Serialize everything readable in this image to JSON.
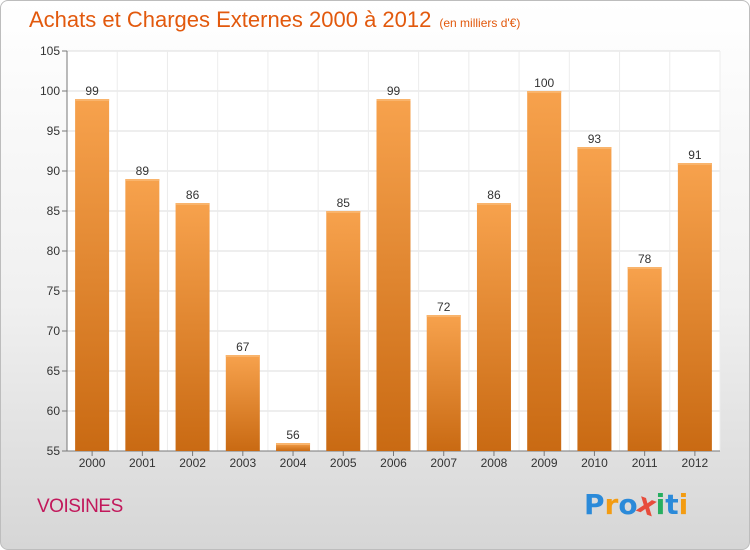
{
  "header": {
    "title": "Achats et Charges Externes 2000 à 2012",
    "unit": "(en milliers d'€)"
  },
  "footer": {
    "place": "VOISINES",
    "logo": {
      "text": "Proxiti",
      "colors": [
        "#2b8ad9",
        "#f39c12",
        "#2b8ad9",
        "#e74c3c",
        "#27ae60",
        "#2b8ad9",
        "#f39c12"
      ]
    }
  },
  "colors": {
    "bar_light": "#f7a24d",
    "bar_dark": "#c96a13",
    "title": "#e2590d",
    "place": "#c2185b"
  },
  "chart_data": {
    "type": "bar",
    "title": "Achats et Charges Externes 2000 à 2012",
    "subtitle": "(en milliers d'€)",
    "categories": [
      "2000",
      "2001",
      "2002",
      "2003",
      "2004",
      "2005",
      "2006",
      "2007",
      "2008",
      "2009",
      "2010",
      "2011",
      "2012"
    ],
    "values": [
      99,
      89,
      86,
      67,
      56,
      85,
      99,
      72,
      86,
      100,
      93,
      78,
      91
    ],
    "ylim": [
      55,
      105
    ],
    "yticks": [
      55,
      60,
      65,
      70,
      75,
      80,
      85,
      90,
      95,
      100,
      105
    ],
    "grid": true,
    "data_labels": true
  }
}
